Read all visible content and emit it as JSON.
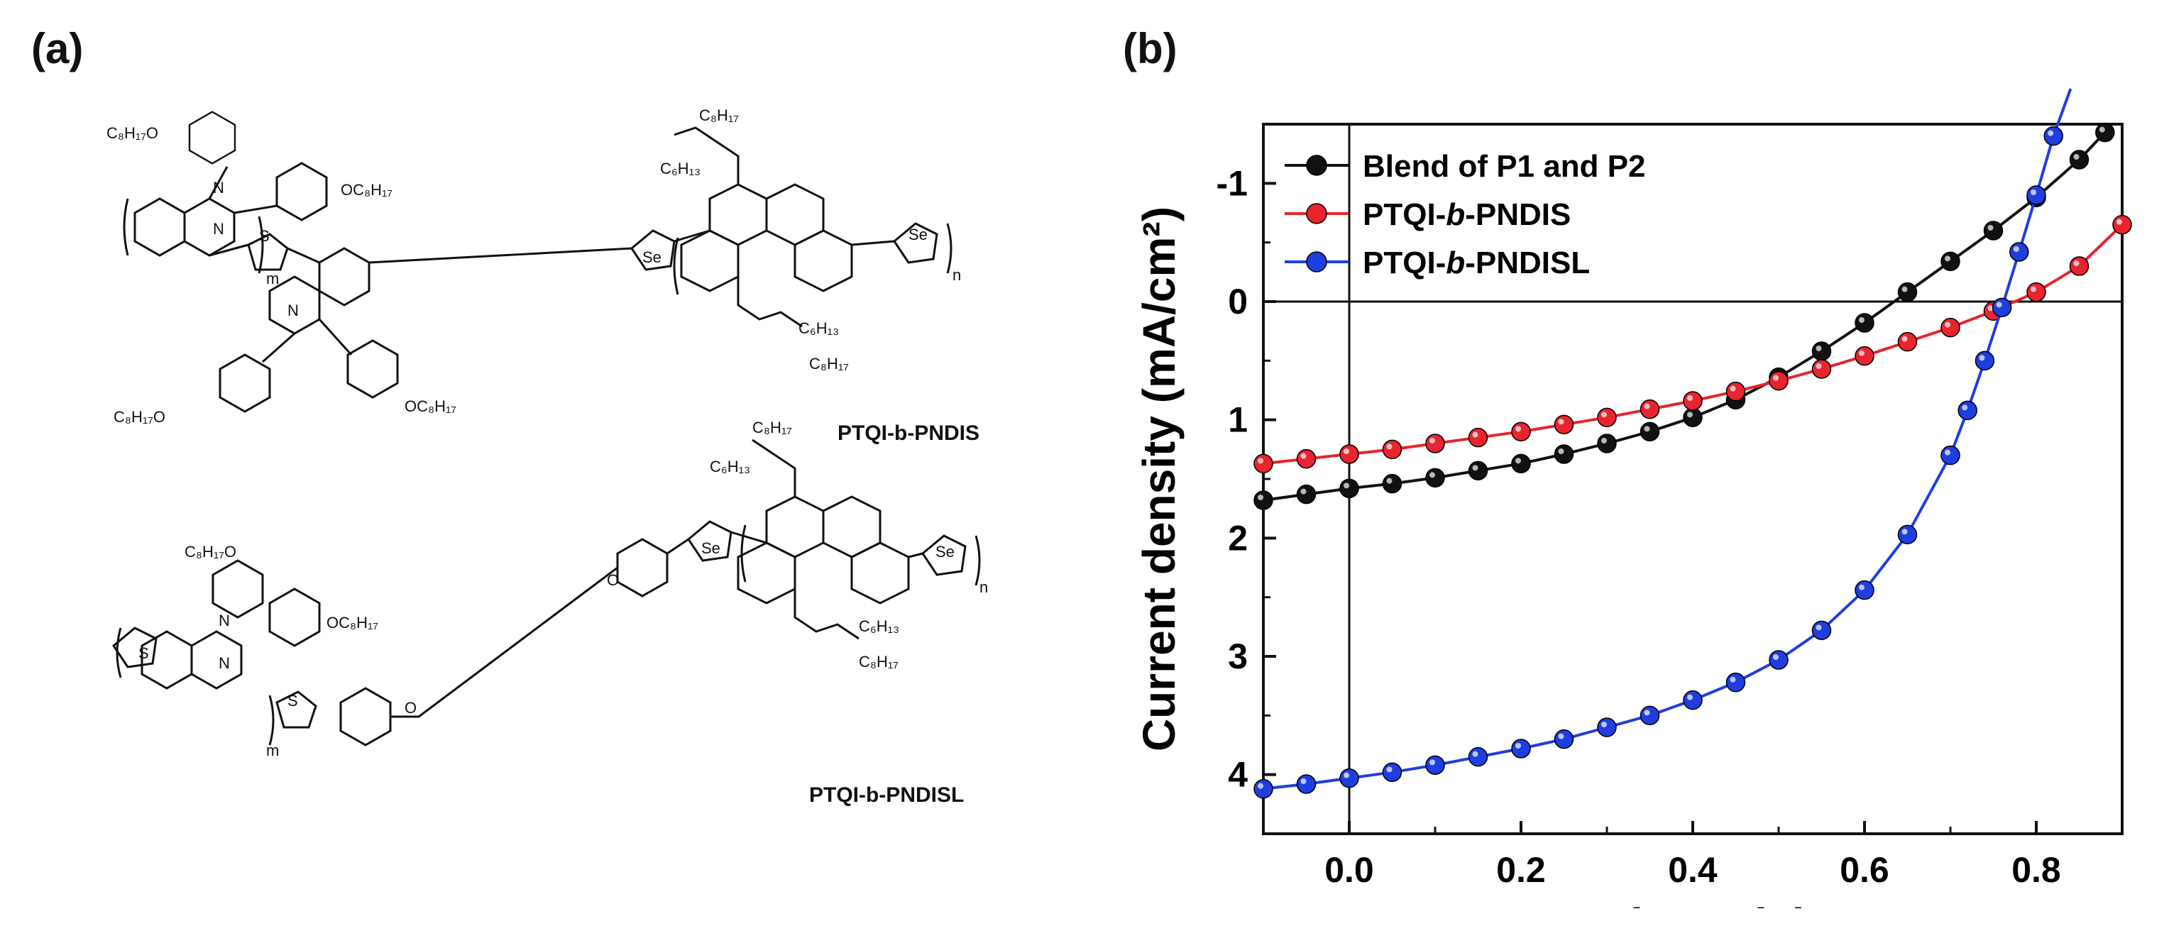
{
  "panels": {
    "a": "(a)",
    "b": "(b)"
  },
  "structures": {
    "top_name": "PTQI-b-PNDIS",
    "bottom_name": "PTQI-b-PNDISL",
    "atoms": {
      "N": "N",
      "S": "S",
      "Se": "Se",
      "O": "O"
    },
    "groups": {
      "octyloxy_left": "C₈H₁₇O",
      "octyloxy_right": "OC₈H₁₇",
      "c8h17": "C₈H₁₇",
      "c6h13": "C₆H₁₃"
    },
    "subscripts": {
      "m": "m",
      "n": "n"
    }
  },
  "chart_data": {
    "type": "line",
    "xlabel": "Voltage (V)",
    "ylabel": "Current density (mA/cm²)",
    "xlim": [
      -0.1,
      0.9
    ],
    "ylim": [
      -1.5,
      4.5
    ],
    "y_inverted": true,
    "x_ticks": [
      "0.0",
      "0.2",
      "0.4",
      "0.6",
      "0.8"
    ],
    "x_tick_values": [
      0.0,
      0.2,
      0.4,
      0.6,
      0.8
    ],
    "y_ticks": [
      "-1",
      "0",
      "1",
      "2",
      "3",
      "4"
    ],
    "y_tick_values": [
      -1,
      0,
      1,
      2,
      3,
      4
    ],
    "legend_position": "top-left",
    "series": [
      {
        "name": "Blend of P1 and P2",
        "label_parts": [
          "Blend of P1 and P2",
          "",
          ""
        ],
        "color": "#111111",
        "x": [
          -0.1,
          -0.05,
          0.0,
          0.05,
          0.1,
          0.15,
          0.2,
          0.25,
          0.3,
          0.35,
          0.4,
          0.45,
          0.5,
          0.55,
          0.6,
          0.65,
          0.7,
          0.75,
          0.8,
          0.85,
          0.88
        ],
        "y": [
          1.68,
          1.63,
          1.58,
          1.54,
          1.49,
          1.43,
          1.37,
          1.29,
          1.2,
          1.1,
          0.98,
          0.83,
          0.64,
          0.42,
          0.18,
          -0.08,
          -0.34,
          -0.6,
          -0.88,
          -1.2,
          -1.43
        ]
      },
      {
        "name": "PTQI-b-PNDIS",
        "label_parts": [
          "PTQI-",
          "b",
          "-PNDIS"
        ],
        "color": "#e8242e",
        "x": [
          -0.1,
          -0.05,
          0.0,
          0.05,
          0.1,
          0.15,
          0.2,
          0.25,
          0.3,
          0.35,
          0.4,
          0.45,
          0.5,
          0.55,
          0.6,
          0.65,
          0.7,
          0.75,
          0.8,
          0.85,
          0.9
        ],
        "y": [
          1.37,
          1.33,
          1.29,
          1.25,
          1.2,
          1.15,
          1.1,
          1.04,
          0.98,
          0.91,
          0.84,
          0.76,
          0.67,
          0.57,
          0.46,
          0.34,
          0.22,
          0.08,
          -0.08,
          -0.3,
          -0.65
        ]
      },
      {
        "name": "PTQI-b-PNDISL",
        "label_parts": [
          "PTQI-",
          "b",
          "-PNDISL"
        ],
        "color": "#1f3ee0",
        "x": [
          -0.1,
          -0.05,
          0.0,
          0.05,
          0.1,
          0.15,
          0.2,
          0.25,
          0.3,
          0.35,
          0.4,
          0.45,
          0.5,
          0.55,
          0.6,
          0.65,
          0.7,
          0.72,
          0.74,
          0.76,
          0.78,
          0.8,
          0.82,
          0.84
        ],
        "y": [
          4.12,
          4.08,
          4.03,
          3.98,
          3.92,
          3.85,
          3.78,
          3.7,
          3.6,
          3.5,
          3.37,
          3.22,
          3.03,
          2.78,
          2.44,
          1.97,
          1.3,
          0.92,
          0.5,
          0.05,
          -0.42,
          -0.9,
          -1.4,
          -1.8
        ]
      }
    ]
  }
}
